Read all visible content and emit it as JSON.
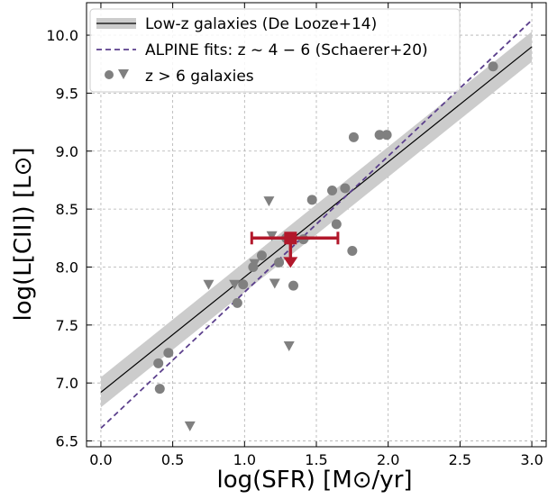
{
  "chart_data": {
    "type": "scatter",
    "xlabel": "log(SFR) [M⊙/yr]",
    "ylabel": "log(L[CII]) [L⊙]",
    "xlim": [
      -0.1,
      3.1
    ],
    "ylim": [
      6.45,
      10.28
    ],
    "x_ticks": [
      "0.0",
      "0.5",
      "1.0",
      "1.5",
      "2.0",
      "2.5",
      "3.0"
    ],
    "y_ticks": [
      "6.5",
      "7.0",
      "7.5",
      "8.0",
      "8.5",
      "9.0",
      "9.5",
      "10.0"
    ],
    "grid": true,
    "legend_position": "top-left",
    "series": [
      {
        "name": "Low-z galaxies (De Looze+14)",
        "kind": "line-with-band",
        "color": "#000000",
        "band_color": "#cccccc",
        "x": [
          0.0,
          3.0
        ],
        "y": [
          6.92,
          9.9
        ],
        "band_half_width": 0.13
      },
      {
        "name": "ALPINE fits: z ~ 4 − 6 (Schaerer+20)",
        "kind": "dashed-line",
        "color": "#5b3f8c",
        "x": [
          0.0,
          3.0
        ],
        "y": [
          6.61,
          10.13
        ]
      },
      {
        "name": "z > 6 galaxies",
        "kind": "points",
        "color": "#808080",
        "detections": [
          [
            0.4,
            7.17
          ],
          [
            0.41,
            6.95
          ],
          [
            0.47,
            7.26
          ],
          [
            0.95,
            7.69
          ],
          [
            0.99,
            7.85
          ],
          [
            1.06,
            8.0
          ],
          [
            1.12,
            8.1
          ],
          [
            1.24,
            8.04
          ],
          [
            1.29,
            8.25
          ],
          [
            1.34,
            7.84
          ],
          [
            1.41,
            8.24
          ],
          [
            1.47,
            8.58
          ],
          [
            1.61,
            8.66
          ],
          [
            1.64,
            8.37
          ],
          [
            1.7,
            8.68
          ],
          [
            1.75,
            8.14
          ],
          [
            1.76,
            9.12
          ],
          [
            1.94,
            9.14
          ],
          [
            1.99,
            9.14
          ],
          [
            2.73,
            9.73
          ]
        ],
        "upper_limits": [
          [
            0.62,
            6.63
          ],
          [
            0.75,
            7.85
          ],
          [
            0.93,
            7.85
          ],
          [
            1.07,
            8.03
          ],
          [
            1.17,
            8.57
          ],
          [
            1.19,
            8.27
          ],
          [
            1.21,
            7.86
          ],
          [
            1.31,
            7.32
          ]
        ]
      },
      {
        "name": "",
        "kind": "highlight",
        "color": "#b2182b",
        "x": 1.32,
        "y": 8.25,
        "xerr": [
          1.05,
          1.65
        ],
        "upper_limit_to": 8.04
      }
    ]
  },
  "legend": {
    "items": [
      {
        "label": "Low-z galaxies (De Looze+14)"
      },
      {
        "label": "ALPINE fits: z ~ 4 − 6 (Schaerer+20)"
      },
      {
        "label": "z > 6 galaxies"
      }
    ]
  }
}
